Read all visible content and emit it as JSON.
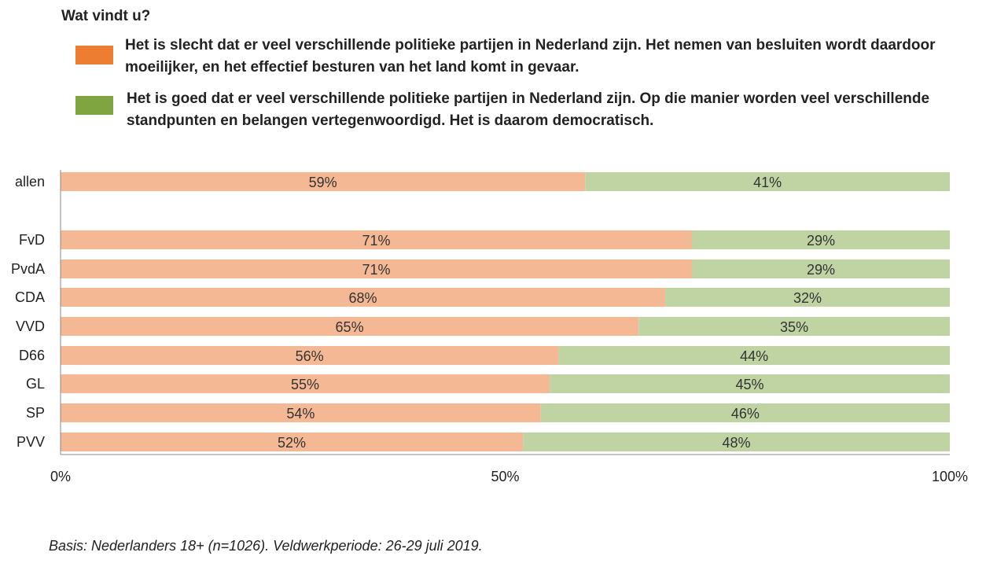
{
  "title": "Wat vindt u?",
  "legend": [
    {
      "label": "Het is slecht dat er veel verschillende politieke partijen in Nederland zijn. Het nemen van besluiten wordt daardoor moeilijker, en het effectief besturen van het land komt in gevaar.",
      "color": "#ED7D31"
    },
    {
      "label": "Het is goed dat er veel verschillende politieke partijen in Nederland zijn. Op die manier worden veel verschillende standpunten en belangen vertegenwoordigd. Het is daarom democratisch.",
      "color": "#7FA540"
    }
  ],
  "footnote": "Basis: Nederlanders 18+ (n=1026). Veldwerkperiode: 26-29 juli 2019.",
  "chart_data": {
    "type": "bar",
    "orientation": "horizontal",
    "stacked": true,
    "categories": [
      "allen",
      "FvD",
      "PvdA",
      "CDA",
      "VVD",
      "D66",
      "GL",
      "SP",
      "PVV"
    ],
    "series": [
      {
        "name": "Het is slecht dat er veel verschillende politieke partijen in Nederland zijn",
        "color": "#F4B994",
        "values": [
          59,
          71,
          71,
          68,
          65,
          56,
          55,
          54,
          52
        ],
        "labels": [
          "59%",
          "71%",
          "71%",
          "68%",
          "65%",
          "56%",
          "55%",
          "54%",
          "52%"
        ]
      },
      {
        "name": "Het is goed dat er veel verschillende politieke partijen in Nederland zijn",
        "color": "#BFD4A2",
        "values": [
          41,
          29,
          29,
          32,
          35,
          44,
          45,
          46,
          48
        ],
        "labels": [
          "41%",
          "29%",
          "29%",
          "32%",
          "35%",
          "44%",
          "45%",
          "46%",
          "48%"
        ]
      }
    ],
    "xlim": [
      0,
      100
    ],
    "xticks": [
      "0%",
      "50%",
      "100%"
    ],
    "title": "Wat vindt u?",
    "xlabel": "",
    "ylabel": ""
  }
}
